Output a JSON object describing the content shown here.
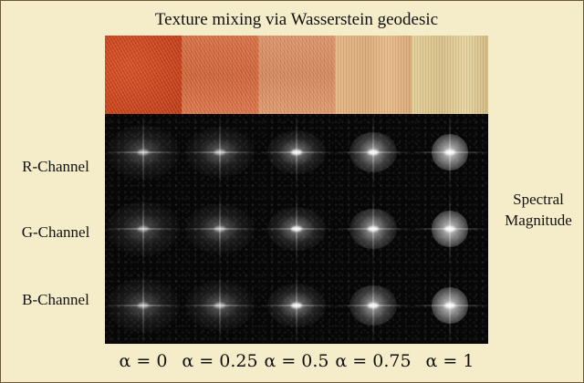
{
  "figure": {
    "title": "Texture mixing via Wasserstein geodesic",
    "row_labels": [
      "R-Channel",
      "G-Channel",
      "B-Channel"
    ],
    "side_label_line1": "Spectral",
    "side_label_line2": "Magnitude",
    "alpha_labels": [
      "α = 0",
      "α = 0.25",
      "α = 0.5",
      "α = 0.75",
      "α = 1"
    ],
    "textures": [
      {
        "alpha": 0,
        "color": "#d94b21"
      },
      {
        "alpha": 0.25,
        "color": "#dc7245"
      },
      {
        "alpha": 0.5,
        "color": "#dd9569"
      },
      {
        "alpha": 0.75,
        "color": "#e2b683"
      },
      {
        "alpha": 1,
        "color": "#dccb93"
      }
    ]
  }
}
